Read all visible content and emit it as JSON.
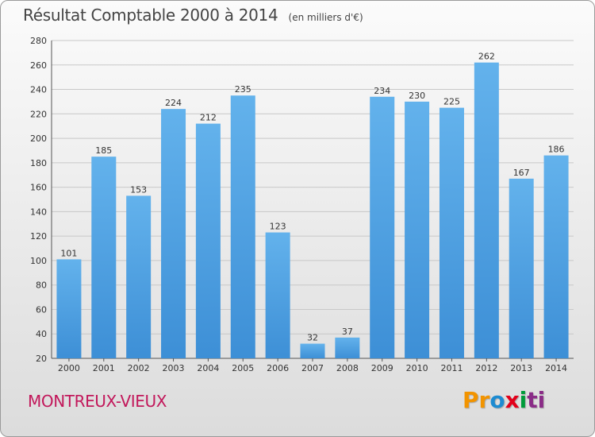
{
  "chart_data": {
    "type": "bar",
    "title": "Résultat Comptable 2000 à 2014",
    "subtitle": "(en milliers d'€)",
    "categories": [
      "2000",
      "2001",
      "2002",
      "2003",
      "2004",
      "2005",
      "2006",
      "2007",
      "2008",
      "2009",
      "2010",
      "2011",
      "2012",
      "2013",
      "2014"
    ],
    "values": [
      101,
      185,
      153,
      224,
      212,
      235,
      123,
      32,
      37,
      234,
      230,
      225,
      262,
      167,
      186
    ],
    "ylim": [
      20,
      280
    ],
    "yticks": [
      20,
      40,
      60,
      80,
      100,
      120,
      140,
      160,
      180,
      200,
      220,
      240,
      260,
      280
    ],
    "grid": true,
    "bar_color": "#3d8fd6",
    "bar_color_light": "#63b2ec"
  },
  "location": "MONTREUX-VIEUX",
  "logo": {
    "parts": [
      "Pr",
      "o",
      "x",
      "i",
      "ti"
    ],
    "colors": [
      "#f29400",
      "#1d8bd1",
      "#e2001a",
      "#009b3a",
      "#8a2c87"
    ]
  }
}
